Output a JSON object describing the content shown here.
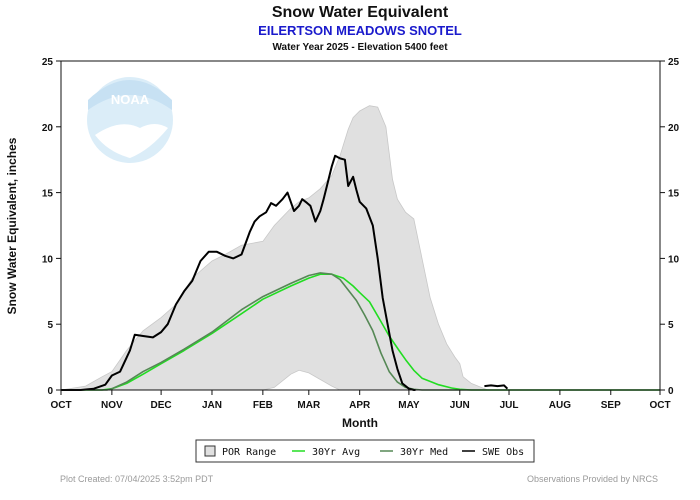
{
  "chart_data": {
    "type": "line",
    "title": "Snow Water Equivalent",
    "subtitle": "EILERTSON MEADOWS SNOTEL",
    "subtitle2": "Water Year 2025 -  Elevation 5400 feet",
    "xlabel": "Month",
    "ylabel": "Snow Water Equivalent, inches",
    "xlim": [
      0,
      365
    ],
    "ylim": [
      0,
      25
    ],
    "yticks": [
      0,
      5,
      10,
      15,
      20,
      25
    ],
    "month_ticks": [
      {
        "label": "OCT",
        "day": 0
      },
      {
        "label": "NOV",
        "day": 31
      },
      {
        "label": "DEC",
        "day": 61
      },
      {
        "label": "JAN",
        "day": 92
      },
      {
        "label": "FEB",
        "day": 123
      },
      {
        "label": "MAR",
        "day": 151
      },
      {
        "label": "APR",
        "day": 182
      },
      {
        "label": "MAY",
        "day": 212
      },
      {
        "label": "JUN",
        "day": 243
      },
      {
        "label": "JUL",
        "day": 273
      },
      {
        "label": "AUG",
        "day": 304
      },
      {
        "label": "SEP",
        "day": 335
      },
      {
        "label": "OCT",
        "day": 365
      }
    ],
    "por_range": {
      "name": "POR Range",
      "days": [
        0,
        15,
        25,
        31,
        40,
        50,
        61,
        70,
        80,
        92,
        100,
        110,
        123,
        130,
        140,
        145,
        151,
        158,
        165,
        170,
        175,
        178,
        182,
        188,
        193,
        198,
        202,
        205,
        210,
        215,
        220,
        225,
        230,
        235,
        240,
        243,
        245,
        250,
        260,
        365
      ],
      "max": [
        0,
        0.3,
        1.0,
        1.4,
        3.0,
        4.5,
        5.5,
        6.5,
        8.5,
        9.8,
        10.3,
        11.0,
        11.3,
        12.5,
        13.8,
        14.3,
        14.6,
        15.3,
        16.3,
        17.8,
        19.8,
        20.7,
        21.2,
        21.6,
        21.5,
        20.0,
        16.0,
        14.5,
        13.5,
        13.0,
        10.0,
        7.0,
        5.0,
        3.5,
        2.5,
        2.0,
        1.0,
        0.5,
        0,
        0
      ],
      "min": [
        0,
        0,
        0,
        0,
        0,
        0,
        0,
        0,
        0,
        0,
        0,
        0,
        0,
        0.2,
        1.2,
        1.5,
        1.3,
        0.8,
        0.3,
        0,
        0,
        0,
        0,
        0,
        0,
        0,
        0,
        0,
        0,
        0,
        0,
        0,
        0,
        0,
        0,
        0,
        0,
        0,
        0,
        0
      ]
    },
    "series": [
      {
        "name": "30Yr Avg",
        "color": "#22dd22",
        "days": [
          0,
          25,
          31,
          40,
          50,
          61,
          75,
          92,
          110,
          123,
          140,
          151,
          158,
          165,
          172,
          178,
          182,
          188,
          194,
          200,
          206,
          210,
          215,
          220,
          230,
          238,
          243,
          250,
          365
        ],
        "values": [
          0,
          0,
          0.1,
          0.5,
          1.2,
          2.0,
          3.0,
          4.3,
          5.8,
          6.9,
          7.9,
          8.5,
          8.8,
          8.8,
          8.5,
          7.9,
          7.4,
          6.7,
          5.4,
          4.1,
          3.0,
          2.3,
          1.5,
          0.9,
          0.4,
          0.15,
          0.05,
          0,
          0
        ]
      },
      {
        "name": "30Yr Med",
        "color": "#558855",
        "days": [
          0,
          28,
          31,
          40,
          50,
          61,
          75,
          92,
          110,
          123,
          140,
          151,
          158,
          165,
          170,
          175,
          180,
          185,
          190,
          195,
          200,
          205,
          210,
          215,
          220,
          365
        ],
        "values": [
          0,
          0,
          0.1,
          0.6,
          1.4,
          2.1,
          3.1,
          4.4,
          6.1,
          7.1,
          8.1,
          8.7,
          8.9,
          8.8,
          8.4,
          7.6,
          6.8,
          5.7,
          4.5,
          2.8,
          1.4,
          0.6,
          0.2,
          0.05,
          0,
          0
        ]
      },
      {
        "name": "SWE Obs",
        "color": "#000000",
        "days": [
          0,
          12,
          20,
          27,
          31,
          36,
          42,
          45,
          50,
          56,
          61,
          65,
          70,
          75,
          80,
          85,
          90,
          95,
          100,
          105,
          110,
          115,
          118,
          121,
          125,
          128,
          131,
          135,
          138,
          142,
          145,
          147,
          150,
          152,
          155,
          158,
          160,
          162,
          165,
          167,
          170,
          173,
          175,
          178,
          180,
          182,
          186,
          190,
          193,
          196,
          199,
          202,
          205,
          208,
          212,
          215,
          216
        ],
        "values": [
          0,
          0,
          0.1,
          0.4,
          1.1,
          1.4,
          3.0,
          4.2,
          4.1,
          4.0,
          4.4,
          5.0,
          6.5,
          7.5,
          8.3,
          9.8,
          10.5,
          10.5,
          10.2,
          10.0,
          10.3,
          12.0,
          12.8,
          13.2,
          13.5,
          14.2,
          14.0,
          14.5,
          15.0,
          13.6,
          14.0,
          14.5,
          14.2,
          14.0,
          12.8,
          13.6,
          14.5,
          15.5,
          17.0,
          17.8,
          17.6,
          17.5,
          15.5,
          16.2,
          15.2,
          14.3,
          13.8,
          12.5,
          10.0,
          7.0,
          5.0,
          3.0,
          1.6,
          0.5,
          0.1,
          0,
          0
        ]
      },
      {
        "name": "SWE Obs (late)",
        "color": "#000000",
        "days": [
          258,
          262,
          266,
          270,
          272
        ],
        "values": [
          0.3,
          0.35,
          0.3,
          0.35,
          0.1
        ]
      }
    ],
    "legend": [
      "POR Range",
      "30Yr Avg",
      "30Yr Med",
      "SWE Obs"
    ]
  },
  "logo_text": "NOAA",
  "footer": {
    "left": "Plot Created: 07/04/2025 3:52pm PDT",
    "right": "Observations Provided by NRCS"
  },
  "colors": {
    "por_fill": "#e0e0e0",
    "por_edge": "#c8c8c8",
    "background": "#ffffff"
  }
}
